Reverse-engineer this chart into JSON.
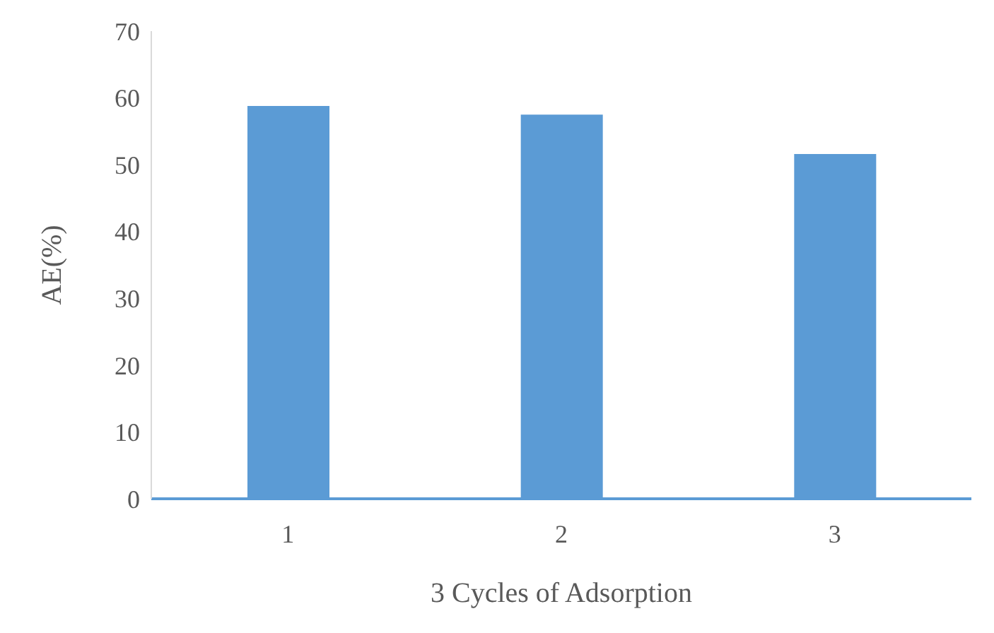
{
  "chart_data": {
    "type": "bar",
    "xlabel": "3 Cycles of Adsorption",
    "ylabel": "AE(%)",
    "categories": [
      "1",
      "2",
      "3"
    ],
    "values": [
      58.8,
      57.5,
      51.6
    ],
    "color": "#5b9bd5",
    "ylim": [
      0,
      70
    ],
    "yticks": [
      0,
      10,
      20,
      30,
      40,
      50,
      60,
      70
    ],
    "grid": false,
    "legend": false
  }
}
